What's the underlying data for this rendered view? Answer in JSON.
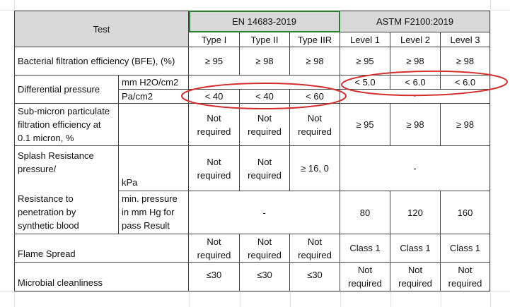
{
  "table": {
    "header": {
      "test": "Test",
      "en_standard": "EN 14683-2019",
      "astm_standard": "ASTM F2100:2019",
      "en_types": [
        "Type I",
        "Type II",
        "Type IIR"
      ],
      "astm_levels": [
        "Level 1",
        "Level 2",
        "Level 3"
      ]
    },
    "bfe": {
      "label": "Bacterial filtration efficiency (BFE), (%)",
      "values": [
        "≥ 95",
        "≥ 98",
        "≥ 98",
        "≥ 95",
        "≥ 98",
        "≥ 98"
      ]
    },
    "dp": {
      "label": "Differential pressure",
      "unit_astm": "mm H2O/cm2",
      "unit_en": "Pa/cm2",
      "astm_values": [
        "< 5.0",
        "< 6.0",
        "< 6.0"
      ],
      "en_values": [
        "< 40",
        "< 40",
        "< 60"
      ],
      "astm_row2_dash": "-"
    },
    "submicron": {
      "label_lines": [
        "Sub-micron particulate",
        "filtration efficiency at",
        "0.1 micron, %"
      ],
      "en_values": [
        [
          "Not",
          "required"
        ],
        [
          "Not",
          "required"
        ],
        [
          "Not",
          "required"
        ]
      ],
      "astm_values": [
        "≥ 95",
        "≥ 98",
        "≥ 98"
      ]
    },
    "splash": {
      "label_lines": [
        "Splash Resistance",
        "pressure/"
      ],
      "unit": "kPa",
      "en_values": [
        [
          "Not",
          "required"
        ],
        [
          "Not",
          "required"
        ]
      ],
      "type_iir": "≥ 16, 0",
      "astm_dash": "-"
    },
    "synthetic_blood": {
      "label_lines": [
        "Resistance to",
        "penetration by",
        "synthetic blood"
      ],
      "unit_lines": [
        "min. pressure",
        "in mm Hg for",
        "pass Result"
      ],
      "en_dash": "-",
      "astm_values": [
        "80",
        "120",
        "160"
      ]
    },
    "flame": {
      "label": "Flame Spread",
      "en_values": [
        [
          "Not",
          "required"
        ],
        [
          "Not",
          "required"
        ],
        [
          "Not",
          "required"
        ]
      ],
      "astm_values": [
        "Class 1",
        "Class 1",
        "Class 1"
      ]
    },
    "microbial": {
      "label": "Microbial cleanliness",
      "en_values": [
        "≤30",
        "≤30",
        "≤30"
      ],
      "astm_values": [
        [
          "Not",
          "required"
        ],
        [
          "Not",
          "required"
        ],
        [
          "Not",
          "required"
        ]
      ]
    }
  },
  "colors": {
    "header_fill": "#d9d9d9",
    "annotation_red": "#d32f2f",
    "selection_green": "#2f7d32",
    "gridline": "#e3e3e3"
  }
}
